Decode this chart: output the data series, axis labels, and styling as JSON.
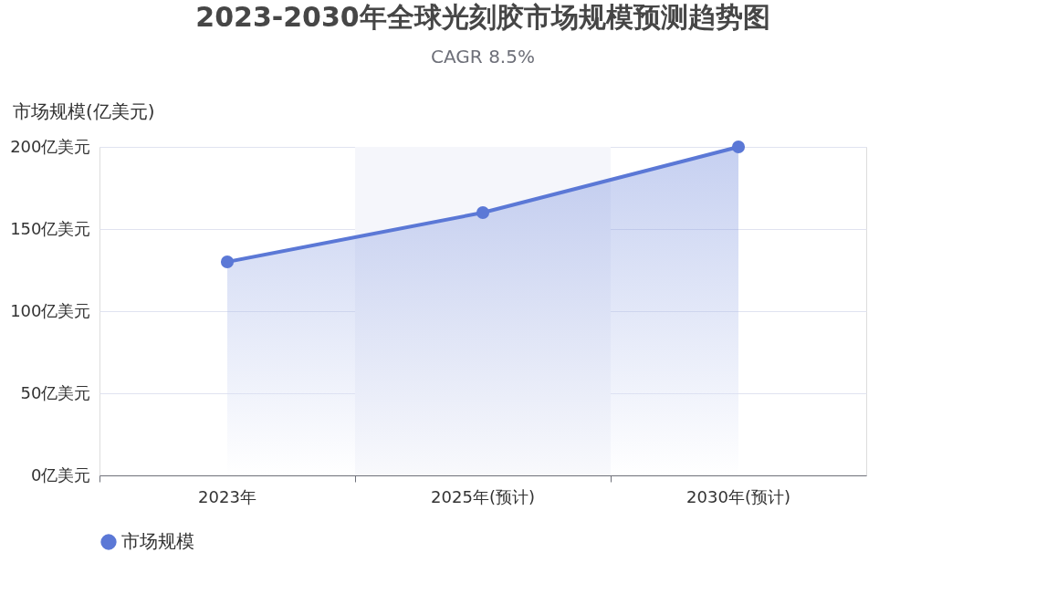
{
  "chart_data": {
    "type": "area",
    "title": "2023-2030年全球光刻胶市场规模预测趋势图",
    "subtitle": "CAGR 8.5%",
    "ylabel": "市场规模(亿美元)",
    "categories": [
      "2023年",
      "2025年(预计)",
      "2030年(预计)"
    ],
    "series": [
      {
        "name": "市场规模",
        "color": "#5b78d6",
        "values": [
          130,
          160,
          200
        ]
      }
    ],
    "ylim": [
      0,
      200
    ],
    "yticks": [
      {
        "value": 0,
        "label": "0亿美元"
      },
      {
        "value": 50,
        "label": "50亿美元"
      },
      {
        "value": 100,
        "label": "100亿美元"
      },
      {
        "value": 150,
        "label": "150亿美元"
      },
      {
        "value": 200,
        "label": "200亿美元"
      }
    ],
    "bands": [
      {
        "axis": "x",
        "from": "2025年(预计)",
        "to": "2025年(预计)",
        "color": "#f5f6fb"
      }
    ],
    "grid": "y",
    "legend": "bottom",
    "marker": "circle",
    "line_style": "solid"
  }
}
